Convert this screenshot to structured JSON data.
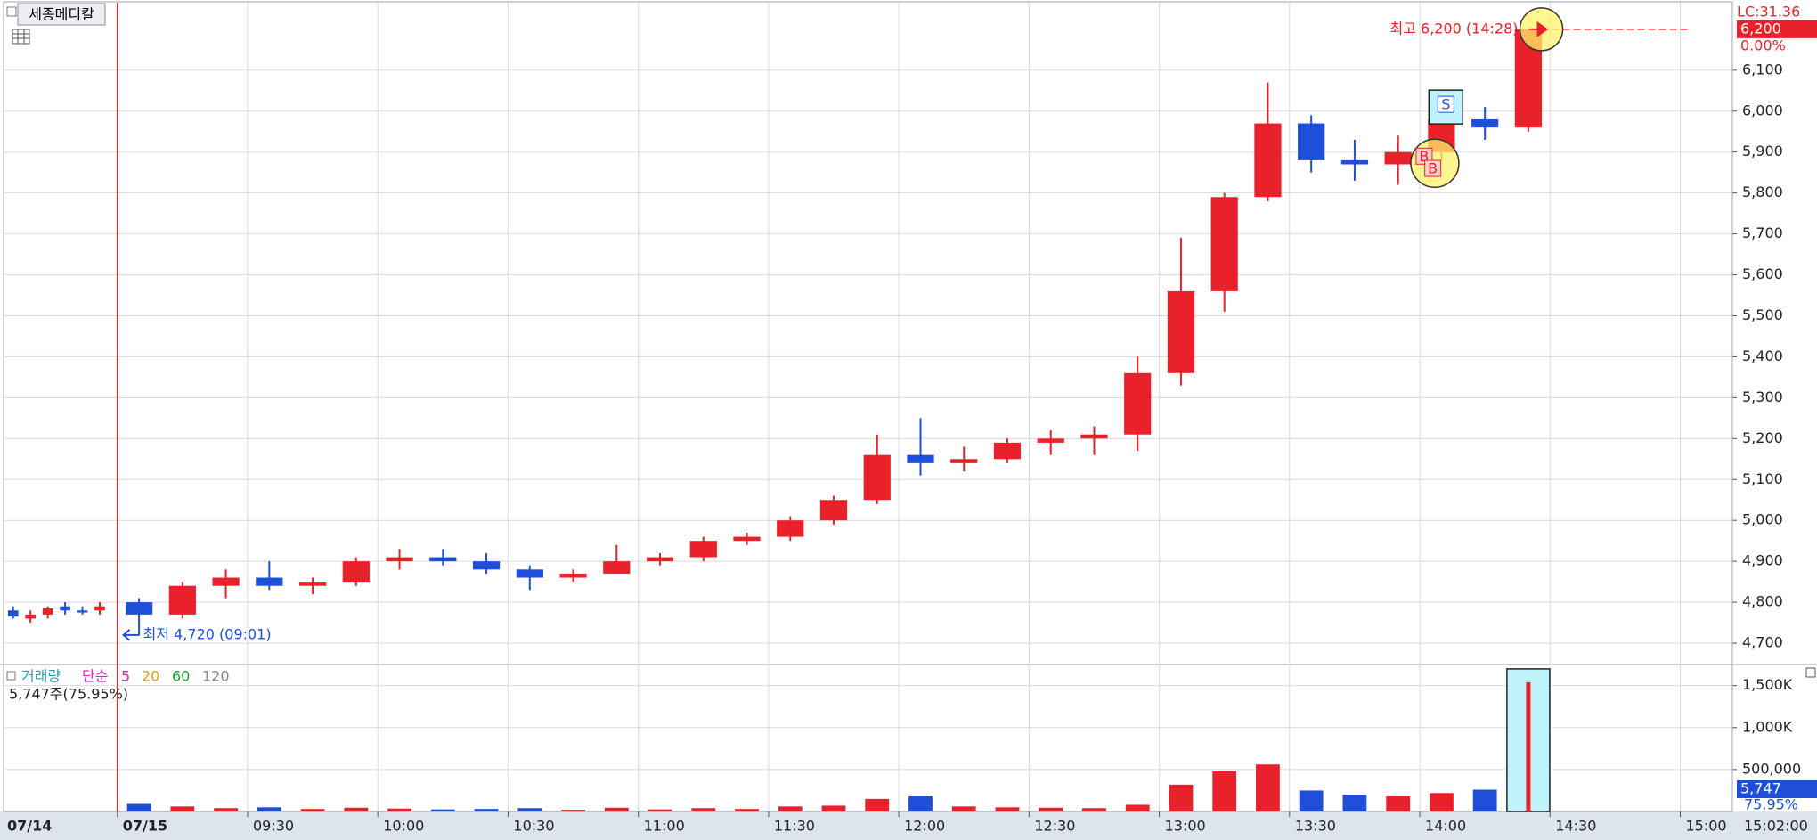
{
  "title_button": "세종메디칼",
  "chart_data": [
    {
      "type": "candlestick",
      "x": [
        "09:00",
        "09:10",
        "09:20",
        "09:30",
        "09:40",
        "09:50",
        "10:00",
        "10:10",
        "10:20",
        "10:30",
        "10:40",
        "10:50",
        "11:00",
        "11:10",
        "11:20",
        "11:30",
        "11:40",
        "11:50",
        "12:00",
        "12:10",
        "12:20",
        "12:30",
        "12:40",
        "12:50",
        "13:00",
        "13:10",
        "13:20",
        "13:30",
        "13:40",
        "13:50",
        "14:00",
        "14:10",
        "14:20"
      ],
      "open": [
        4800,
        4770,
        4840,
        4860,
        4840,
        4850,
        4900,
        4910,
        4900,
        4880,
        4860,
        4870,
        4900,
        4910,
        4950,
        4960,
        5000,
        5050,
        5160,
        5140,
        5150,
        5190,
        5200,
        5210,
        5360,
        5560,
        5790,
        5970,
        5880,
        5870,
        5900,
        5980,
        5960
      ],
      "high": [
        4810,
        4850,
        4880,
        4900,
        4860,
        4910,
        4930,
        4930,
        4920,
        4890,
        4880,
        4940,
        4920,
        4960,
        4970,
        5010,
        5060,
        5210,
        5250,
        5180,
        5200,
        5220,
        5230,
        5400,
        5690,
        5800,
        6070,
        5990,
        5930,
        5940,
        5990,
        6010,
        6200
      ],
      "low": [
        4720,
        4760,
        4810,
        4830,
        4820,
        4840,
        4880,
        4890,
        4870,
        4830,
        4850,
        4870,
        4890,
        4900,
        4940,
        4950,
        4990,
        5040,
        5110,
        5120,
        5140,
        5160,
        5160,
        5170,
        5330,
        5510,
        5780,
        5850,
        5830,
        5820,
        5880,
        5930,
        5950
      ],
      "close": [
        4770,
        4840,
        4860,
        4840,
        4850,
        4900,
        4910,
        4900,
        4880,
        4860,
        4870,
        4900,
        4910,
        4950,
        4960,
        5000,
        5050,
        5160,
        5140,
        5150,
        5190,
        5200,
        5210,
        5360,
        5560,
        5790,
        5970,
        5880,
        5870,
        5900,
        5980,
        5960,
        6200
      ],
      "up_color": "#e8212b",
      "down_color": "#1f4fd8",
      "prev_day": {
        "label": "07/14",
        "open": [
          4780,
          4760,
          4770,
          4790,
          4780,
          4780
        ],
        "high": [
          4790,
          4780,
          4790,
          4800,
          4790,
          4800
        ],
        "low": [
          4760,
          4750,
          4760,
          4770,
          4770,
          4770
        ],
        "close": [
          4765,
          4770,
          4785,
          4780,
          4775,
          4790
        ]
      },
      "xlim": [
        "08:34",
        "15:12"
      ],
      "xticks": [
        {
          "value": "09:00",
          "label": "07/15"
        },
        "09:30",
        "10:00",
        "10:30",
        "11:00",
        "11:30",
        "12:00",
        "12:30",
        "13:00",
        "13:30",
        "14:00",
        "14:30",
        "15:00"
      ],
      "ylim": [
        4650,
        6265
      ],
      "yticks": [
        {
          "value": 4700,
          "label": "4,700"
        },
        {
          "value": 4800,
          "label": "4,800"
        },
        {
          "value": 4900,
          "label": "4,900"
        },
        {
          "value": 5000,
          "label": "5,000"
        },
        {
          "value": 5100,
          "label": "5,100"
        },
        {
          "value": 5200,
          "label": "5,200"
        },
        {
          "value": 5300,
          "label": "5,300"
        },
        {
          "value": 5400,
          "label": "5,400"
        },
        {
          "value": 5500,
          "label": "5,500"
        },
        {
          "value": 5600,
          "label": "5,600"
        },
        {
          "value": 5700,
          "label": "5,700"
        },
        {
          "value": 5800,
          "label": "5,800"
        },
        {
          "value": 5900,
          "label": "5,900"
        },
        {
          "value": 6000,
          "label": "6,000"
        },
        {
          "value": 6100,
          "label": "6,100"
        }
      ],
      "grid": true,
      "annotations": {
        "high": "최고 6,200 (14:28)",
        "high_x": "14:28",
        "high_value": 6200,
        "low": "최저 4,720 (09:01)",
        "low_x": "09:01",
        "low_value": 4720,
        "lc": "LC:31.36",
        "price_tag": "6,200",
        "change": "0.00%",
        "end_time": "15:02:00"
      },
      "signals": [
        {
          "x": "14:01",
          "value": 5890,
          "label": "B"
        },
        {
          "x": "14:03",
          "value": 5860,
          "label": "B"
        },
        {
          "x": "14:06",
          "value": 6010,
          "label": "S"
        }
      ]
    },
    {
      "type": "bar",
      "title": "거래량",
      "legend": [
        {
          "name": "단순",
          "color": "#e020c0"
        },
        {
          "name": "5",
          "color": "#e020c0"
        },
        {
          "name": "20",
          "color": "#e0a000"
        },
        {
          "name": "60",
          "color": "#20a030"
        },
        {
          "name": "120",
          "color": "#888888"
        }
      ],
      "info": "5,747주(75.95%)",
      "x": [
        "09:00",
        "09:10",
        "09:20",
        "09:30",
        "09:40",
        "09:50",
        "10:00",
        "10:10",
        "10:20",
        "10:30",
        "10:40",
        "10:50",
        "11:00",
        "11:10",
        "11:20",
        "11:30",
        "11:40",
        "11:50",
        "12:00",
        "12:10",
        "12:20",
        "12:30",
        "12:40",
        "12:50",
        "13:00",
        "13:10",
        "13:20",
        "13:30",
        "13:40",
        "13:50",
        "14:00",
        "14:10",
        "14:20"
      ],
      "values": [
        90000,
        60000,
        40000,
        50000,
        30000,
        45000,
        35000,
        25000,
        30000,
        40000,
        20000,
        45000,
        25000,
        40000,
        30000,
        60000,
        70000,
        150000,
        180000,
        60000,
        50000,
        45000,
        40000,
        80000,
        320000,
        480000,
        560000,
        250000,
        200000,
        180000,
        220000,
        260000,
        1540000
      ],
      "ylim": [
        0,
        1730000
      ],
      "yticks": [
        {
          "value": 500000,
          "label": "500,000"
        },
        {
          "value": 1000000,
          "label": "1,000K"
        },
        {
          "value": 1500000,
          "label": "1,500K"
        }
      ],
      "last_tag": "5,747",
      "ratio_tag": "75.95%"
    }
  ]
}
